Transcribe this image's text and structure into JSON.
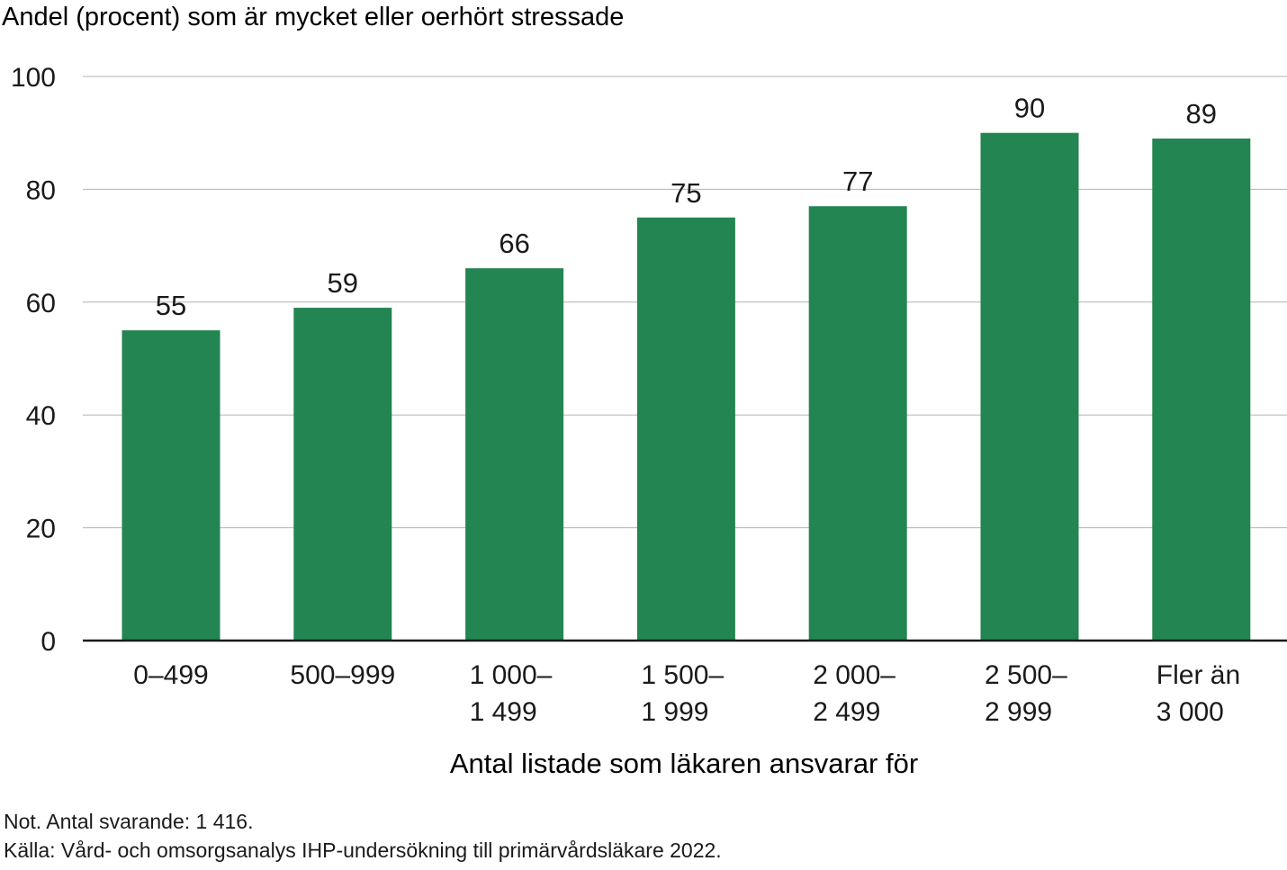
{
  "chart_data": {
    "type": "bar",
    "ylabel": "Andel (procent) som är mycket eller oerhört stressade",
    "xlabel": "Antal listade som läkaren ansvarar för",
    "categories": [
      [
        "0–499"
      ],
      [
        "500–999"
      ],
      [
        "1 000–",
        "1 499"
      ],
      [
        "1 500–",
        "1 999"
      ],
      [
        "2 000–",
        "2 499"
      ],
      [
        "2 500–",
        "2 999"
      ],
      [
        "Fler än",
        "3 000"
      ]
    ],
    "values": [
      55,
      59,
      66,
      75,
      77,
      90,
      89
    ],
    "ylim": [
      0,
      100
    ],
    "yticks": [
      "0",
      "20",
      "40",
      "60",
      "80",
      "100"
    ],
    "grid": true,
    "bar_color": "#238551",
    "grid_color": "#b3b3b3"
  },
  "footer": {
    "note": "Not. Antal svarande: 1 416.",
    "source": "Källa: Vård- och omsorgsanalys IHP-undersökning till primärvårdsläkare 2022."
  }
}
